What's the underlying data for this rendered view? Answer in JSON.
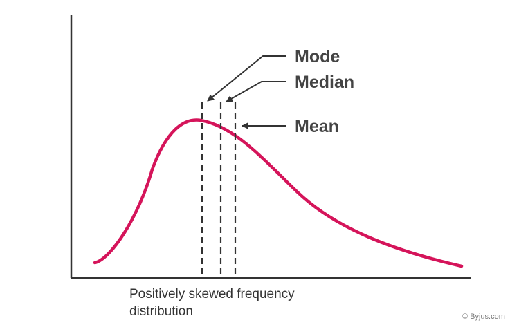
{
  "diagram": {
    "markers": [
      {
        "key": "mode",
        "label": "Mode"
      },
      {
        "key": "median",
        "label": "Median"
      },
      {
        "key": "mean",
        "label": "Mean"
      }
    ],
    "caption": "Positively skewed frequency distribution",
    "watermark": "© Byjus.com",
    "colors": {
      "curve": "#d5145a",
      "axes": "#333333",
      "guides": "#333333",
      "labels": "#444444"
    }
  }
}
